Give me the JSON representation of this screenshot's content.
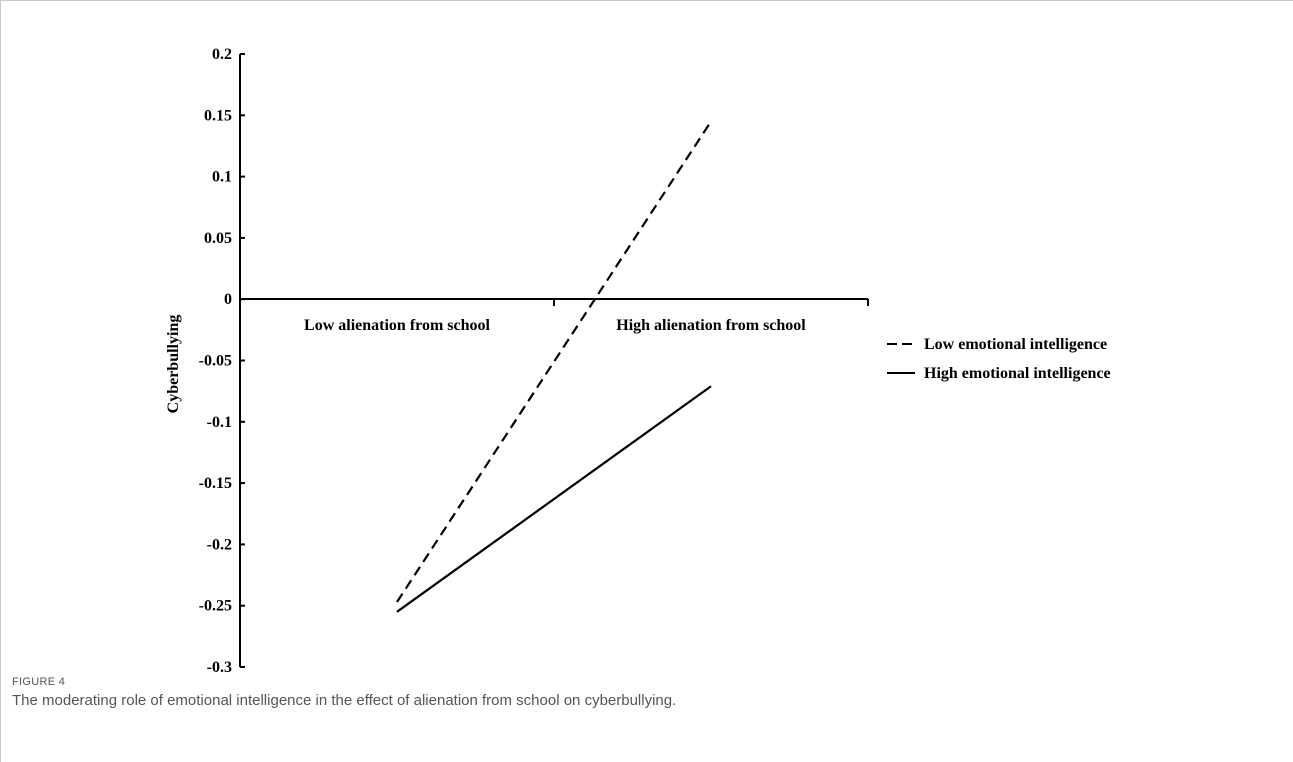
{
  "figure": {
    "label": "FIGURE 4",
    "caption": "The moderating role of emotional intelligence in the effect of alienation from school on cyberbullying."
  },
  "chart_data": {
    "type": "line",
    "categories": [
      "Low alienation from school",
      "High alienation from school"
    ],
    "ylabel": "Cyberbullying",
    "ylim": [
      -0.3,
      0.2
    ],
    "yticks": [
      "0.2",
      "0.15",
      "0.1",
      "0.05",
      "0",
      "-0.05",
      "-0.1",
      "-0.15",
      "-0.2",
      "-0.25",
      "-0.3"
    ],
    "grid": false,
    "legend_position": "right",
    "series": [
      {
        "name": "Low emotional intelligence",
        "style": "dashed",
        "color": "#000000",
        "values": [
          -0.247,
          0.145
        ]
      },
      {
        "name": "High emotional intelligence",
        "style": "solid",
        "color": "#000000",
        "values": [
          -0.255,
          -0.071
        ]
      }
    ]
  }
}
